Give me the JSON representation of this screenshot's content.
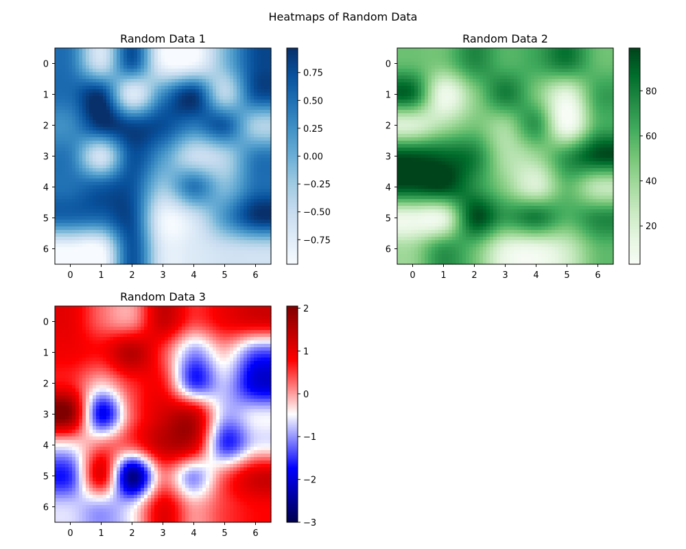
{
  "chart_data": {
    "type": "heatmap",
    "suptitle": "Heatmaps of Random Data",
    "panels": [
      {
        "title": "Random Data 1",
        "cmap": "Blues",
        "x_ticks": [
          0,
          1,
          2,
          3,
          4,
          5,
          6
        ],
        "y_ticks": [
          0,
          1,
          2,
          3,
          4,
          5,
          6
        ],
        "xlim": [
          -0.5,
          6.5
        ],
        "ylim": [
          6.5,
          -0.5
        ],
        "vmin": -0.97,
        "vmax": 0.97,
        "colorbar_ticks": [
          0.75,
          0.5,
          0.25,
          0.0,
          -0.25,
          -0.5,
          -0.75
        ],
        "colorbar_tick_labels": [
          "0.75",
          "0.50",
          "0.25",
          "0.00",
          "−0.25",
          "−0.50",
          "−0.75"
        ],
        "values": [
          [
            0.45,
            -0.55,
            0.65,
            -0.85,
            -0.9,
            -0.1,
            0.75
          ],
          [
            0.55,
            0.88,
            -0.7,
            0.3,
            0.88,
            -0.4,
            0.7
          ],
          [
            0.3,
            0.92,
            0.8,
            0.75,
            0.45,
            0.65,
            -0.3
          ],
          [
            0.4,
            -0.6,
            0.7,
            0.2,
            -0.5,
            -0.35,
            0.4
          ],
          [
            0.5,
            0.65,
            0.7,
            -0.2,
            0.45,
            -0.1,
            0.5
          ],
          [
            0.55,
            0.55,
            0.75,
            -0.85,
            -0.6,
            0.2,
            0.9
          ],
          [
            -0.95,
            -0.95,
            0.7,
            -0.7,
            -0.7,
            -0.55,
            -0.5
          ]
        ]
      },
      {
        "title": "Random Data 2",
        "cmap": "Greens",
        "x_ticks": [
          0,
          1,
          2,
          3,
          4,
          5,
          6
        ],
        "y_ticks": [
          0,
          1,
          2,
          3,
          4,
          5,
          6
        ],
        "xlim": [
          -0.5,
          6.5
        ],
        "ylim": [
          6.5,
          -0.5
        ],
        "vmin": 3,
        "vmax": 99,
        "colorbar_ticks": [
          80,
          60,
          40,
          20
        ],
        "colorbar_tick_labels": [
          "80",
          "60",
          "40",
          "20"
        ],
        "values": [
          [
            55,
            50,
            75,
            60,
            65,
            80,
            55
          ],
          [
            85,
            10,
            45,
            80,
            50,
            15,
            65
          ],
          [
            20,
            35,
            50,
            40,
            70,
            5,
            60
          ],
          [
            95,
            90,
            80,
            35,
            40,
            70,
            95
          ],
          [
            95,
            98,
            75,
            45,
            20,
            55,
            30
          ],
          [
            10,
            15,
            95,
            70,
            80,
            60,
            75
          ],
          [
            40,
            70,
            55,
            15,
            10,
            25,
            55
          ]
        ]
      },
      {
        "title": "Random Data 3",
        "cmap": "seismic",
        "x_ticks": [
          0,
          1,
          2,
          3,
          4,
          5,
          6
        ],
        "y_ticks": [
          0,
          1,
          2,
          3,
          4,
          5,
          6
        ],
        "xlim": [
          -0.5,
          6.5
        ],
        "ylim": [
          6.5,
          -0.5
        ],
        "vmin": -3,
        "vmax": 2.05,
        "colorbar_ticks": [
          2,
          1,
          0,
          -1,
          -2,
          -3
        ],
        "colorbar_tick_labels": [
          "2",
          "1",
          "0",
          "−1",
          "−2",
          "−3"
        ],
        "values": [
          [
            1.0,
            0.3,
            0.1,
            1.3,
            0.5,
            0.9,
            1.1
          ],
          [
            0.9,
            0.8,
            1.5,
            0.5,
            -1.0,
            -0.2,
            -1.3
          ],
          [
            0.7,
            -0.2,
            0.6,
            0.7,
            -1.5,
            -0.8,
            -2.0
          ],
          [
            1.9,
            -1.8,
            0.3,
            1.2,
            1.3,
            -0.8,
            -0.6
          ],
          [
            -0.4,
            0.2,
            0.4,
            1.4,
            1.2,
            -1.5,
            -0.6
          ],
          [
            -1.5,
            1.0,
            -2.6,
            0.1,
            -1.0,
            0.3,
            1.2
          ],
          [
            -0.7,
            -0.9,
            -0.6,
            1.0,
            0.0,
            0.5,
            0.8
          ]
        ]
      }
    ]
  }
}
